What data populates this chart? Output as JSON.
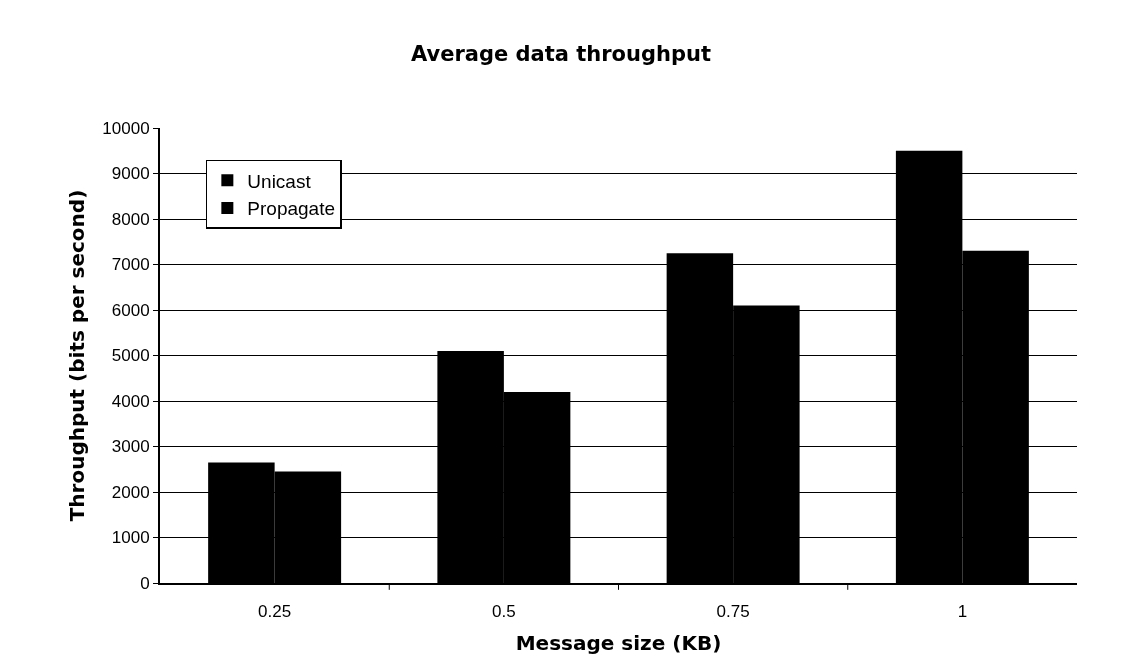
{
  "chart_data": {
    "type": "bar",
    "title": "Average data throughput",
    "xlabel": "Message size (KB)",
    "ylabel": "Throughput (bits per second)",
    "categories": [
      "0.25",
      "0.5",
      "0.75",
      "1"
    ],
    "series": [
      {
        "name": "Unicast",
        "color": "#000000",
        "values": [
          2650,
          5100,
          7250,
          9500
        ]
      },
      {
        "name": "Propagate",
        "color": "#000000",
        "values": [
          2450,
          4200,
          6100,
          7300
        ]
      }
    ],
    "ylim": [
      0,
      10000
    ],
    "yticks": [
      0,
      1000,
      2000,
      3000,
      4000,
      5000,
      6000,
      7000,
      8000,
      9000,
      10000
    ],
    "grid": "y",
    "legend": "top left"
  }
}
